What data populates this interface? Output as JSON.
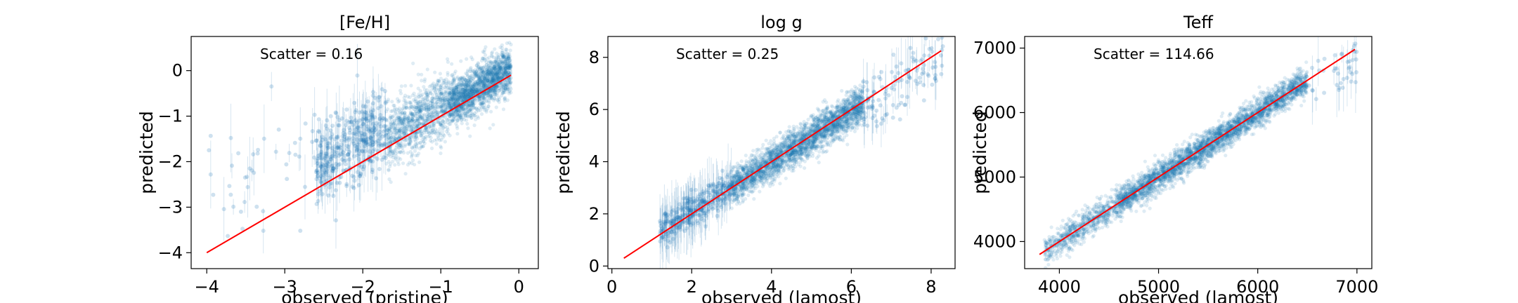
{
  "chart_data": [
    {
      "type": "scatter",
      "title": "[Fe/H]",
      "xlabel": "observed (pristine)",
      "ylabel": "predicted",
      "xlim": [
        -4.2,
        0.25
      ],
      "ylim": [
        -4.35,
        0.75
      ],
      "xticks": [
        -4,
        -3,
        -2,
        -1,
        0
      ],
      "yticks": [
        -4,
        -3,
        -2,
        -1,
        0
      ],
      "annotation": "Scatter = 0.16",
      "scatter": 0.16,
      "point_color": "#1f77b4",
      "line_color": "#ff0000",
      "identity_line": [
        [
          -4.0,
          -4.0
        ],
        [
          -0.1,
          -0.1
        ]
      ],
      "density": [
        {
          "x0": -0.9,
          "x1": -0.1,
          "offset": 0.15,
          "spread": 0.25,
          "n": 1800
        },
        {
          "x0": -1.7,
          "x1": -0.9,
          "offset": 0.2,
          "spread": 0.35,
          "n": 1000
        },
        {
          "x0": -2.6,
          "x1": -1.7,
          "offset": 0.5,
          "spread": 0.45,
          "n": 380
        },
        {
          "x0": -4.0,
          "x1": -2.6,
          "offset": 1.1,
          "spread": 0.6,
          "n": 45
        }
      ]
    },
    {
      "type": "scatter",
      "title": "log g",
      "xlabel": "observed (lamost)",
      "ylabel": "predicted",
      "xlim": [
        -0.1,
        8.6
      ],
      "ylim": [
        -0.1,
        8.8
      ],
      "xticks": [
        0,
        2,
        4,
        6,
        8
      ],
      "yticks": [
        0,
        2,
        4,
        6,
        8
      ],
      "annotation": "Scatter = 0.25",
      "scatter": 0.25,
      "point_color": "#1f77b4",
      "line_color": "#ff0000",
      "identity_line": [
        [
          0.3,
          0.3
        ],
        [
          8.25,
          8.25
        ]
      ],
      "density": [
        {
          "x0": 1.2,
          "x1": 3.0,
          "offset": 0.1,
          "spread": 0.3,
          "n": 350
        },
        {
          "x0": 3.0,
          "x1": 4.5,
          "offset": 0.0,
          "spread": 0.35,
          "n": 1200
        },
        {
          "x0": 4.5,
          "x1": 6.3,
          "offset": -0.05,
          "spread": 0.35,
          "n": 1600
        },
        {
          "x0": 6.3,
          "x1": 8.3,
          "offset": -0.4,
          "spread": 0.6,
          "n": 120
        }
      ]
    },
    {
      "type": "scatter",
      "title": "Teff",
      "xlabel": "observed (lamost)",
      "ylabel": "predicted",
      "xlim": [
        3650,
        7150
      ],
      "ylim": [
        3580,
        7180
      ],
      "xticks": [
        4000,
        5000,
        6000,
        7000
      ],
      "yticks": [
        4000,
        5000,
        6000,
        7000
      ],
      "annotation": "Scatter = 114.66",
      "scatter": 114.66,
      "point_color": "#1f77b4",
      "line_color": "#ff0000",
      "identity_line": [
        [
          3800,
          3800
        ],
        [
          6980,
          6980
        ]
      ],
      "density": [
        {
          "x0": 3850,
          "x1": 4600,
          "offset": 0,
          "spread": 110,
          "n": 700
        },
        {
          "x0": 4600,
          "x1": 5700,
          "offset": 0,
          "spread": 110,
          "n": 2000
        },
        {
          "x0": 5700,
          "x1": 6500,
          "offset": 0,
          "spread": 110,
          "n": 1300
        },
        {
          "x0": 6500,
          "x1": 7000,
          "offset": -150,
          "spread": 200,
          "n": 40
        }
      ]
    }
  ]
}
